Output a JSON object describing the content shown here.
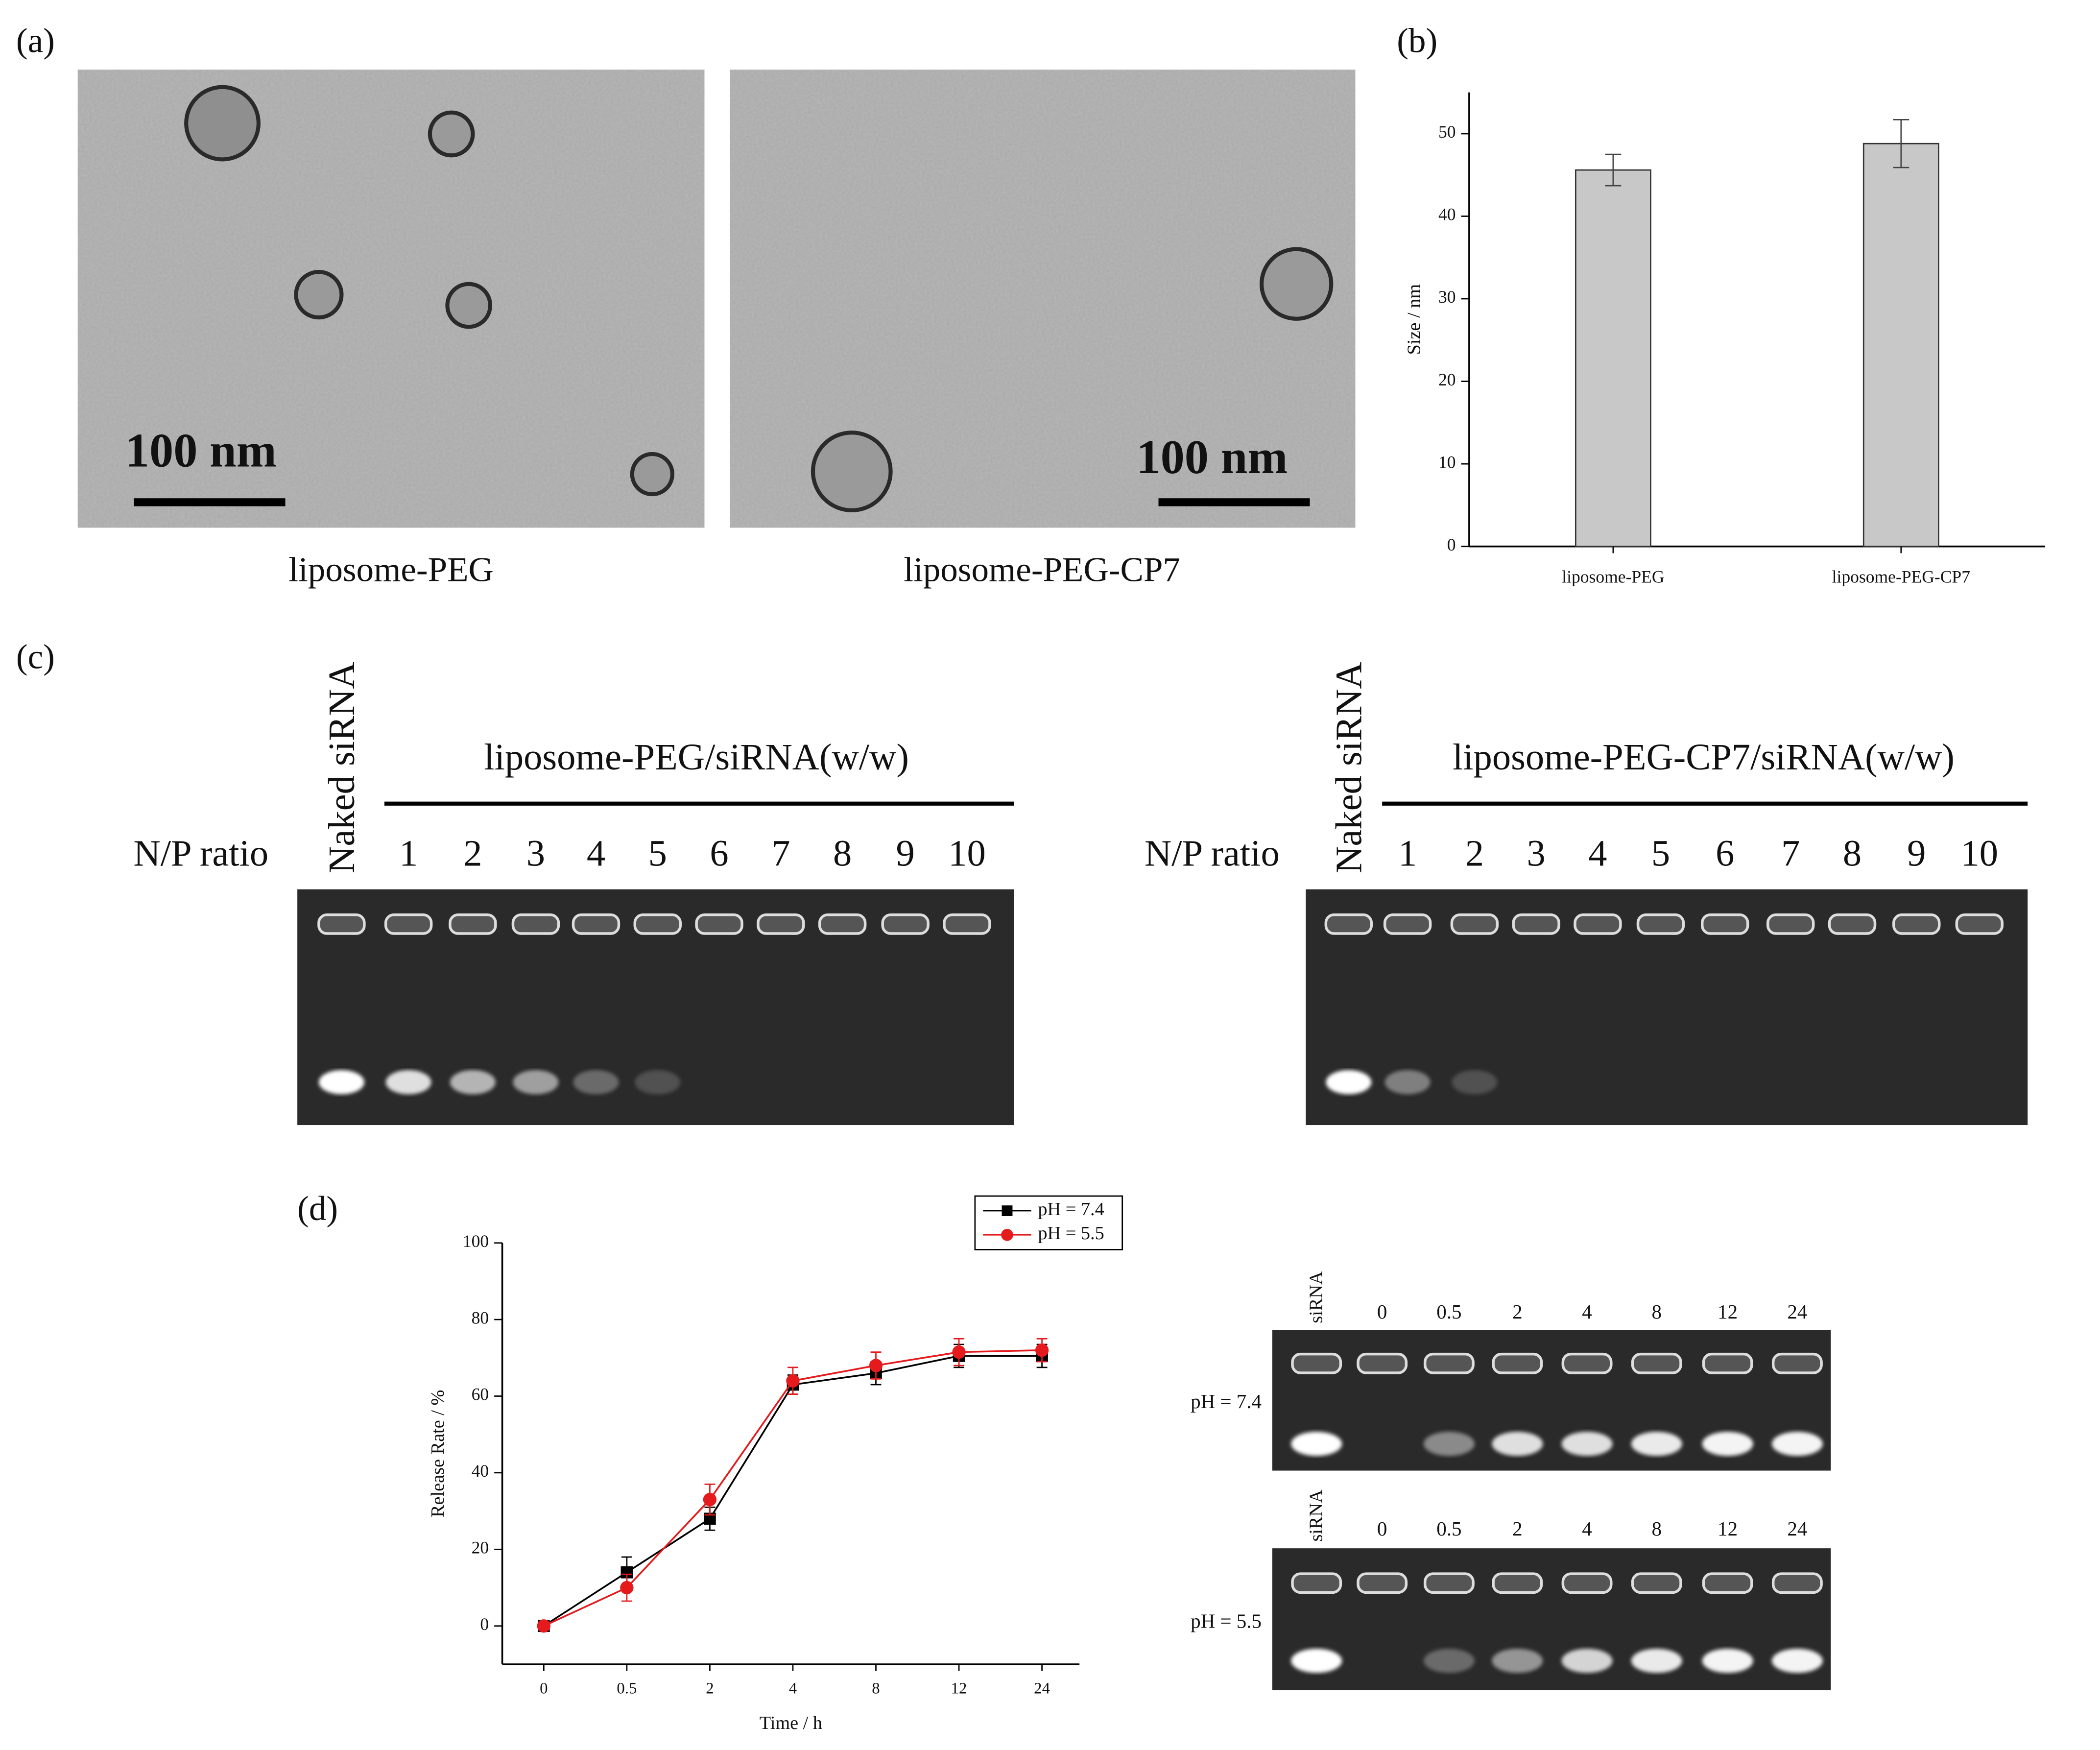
{
  "panels": {
    "a": "(a)",
    "b": "(b)",
    "c": "(c)",
    "d": "(d)"
  },
  "tem": [
    {
      "caption": "liposome-PEG",
      "scale_bar": "100 nm"
    },
    {
      "caption": "liposome-PEG-CP7",
      "scale_bar": "100 nm"
    }
  ],
  "gels_c": [
    {
      "title": "liposome-PEG/siRNA(w/w)",
      "row_label": "N/P ratio",
      "control": "Naked siRNA",
      "lanes": [
        "1",
        "2",
        "3",
        "4",
        "5",
        "6",
        "7",
        "8",
        "9",
        "10"
      ]
    },
    {
      "title": "liposome-PEG-CP7/siRNA(w/w)",
      "row_label": "N/P ratio",
      "control": "Naked siRNA",
      "lanes": [
        "1",
        "2",
        "3",
        "4",
        "5",
        "6",
        "7",
        "8",
        "9",
        "10"
      ]
    }
  ],
  "gels_d": {
    "control": "siRNA",
    "lanes": [
      "0",
      "0.5",
      "2",
      "4",
      "8",
      "12",
      "24"
    ],
    "rows": [
      "pH = 7.4",
      "pH = 5.5"
    ]
  },
  "chart_data": [
    {
      "type": "bar",
      "y_label": "Size / nm",
      "categories": [
        "liposome-PEG",
        "liposome-PEG-CP7"
      ],
      "values": [
        45.6,
        48.8
      ],
      "errors": [
        1.9,
        2.9
      ],
      "color": "#c8c8c8",
      "ylim": [
        0,
        55
      ],
      "yticks": [
        0,
        10,
        20,
        30,
        40,
        50
      ]
    },
    {
      "type": "line",
      "x_label": "Time / h",
      "y_label": "Release Rate / %",
      "categories": [
        "0",
        "0.5",
        "2",
        "4",
        "8",
        "12",
        "24"
      ],
      "series": [
        {
          "name": "pH = 7.4",
          "color": "#000000",
          "values": [
            0,
            14,
            28,
            63,
            66,
            70.5,
            70.5
          ],
          "errors": [
            0.5,
            4,
            3,
            2.5,
            3,
            3,
            3
          ]
        },
        {
          "name": "pH = 5.5",
          "color": "#e41a1c",
          "values": [
            0,
            10,
            33,
            64,
            68,
            71.5,
            72
          ],
          "errors": [
            0.5,
            3.5,
            4,
            3.5,
            3.5,
            3.5,
            3
          ]
        }
      ],
      "ylim": [
        -10,
        100
      ],
      "yticks": [
        0,
        20,
        40,
        60,
        80,
        100
      ],
      "legend": "upper right"
    }
  ]
}
